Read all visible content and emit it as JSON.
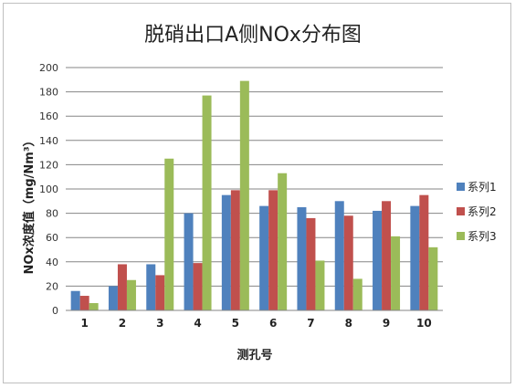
{
  "chart_data": {
    "type": "bar",
    "title": "脱硝出口A侧NOx分布图",
    "xlabel": "测孔号",
    "ylabel": "NOx浓度值（mg/Nm³）",
    "categories": [
      "1",
      "2",
      "3",
      "4",
      "5",
      "6",
      "7",
      "8",
      "9",
      "10"
    ],
    "ylim": [
      0,
      200
    ],
    "yticks": [
      0,
      20,
      40,
      60,
      80,
      100,
      120,
      140,
      160,
      180,
      200
    ],
    "grid": true,
    "legend_position": "right",
    "series": [
      {
        "name": "系列1",
        "color": "#4F81BD",
        "values": [
          16,
          20,
          38,
          80,
          95,
          86,
          85,
          90,
          82,
          86
        ]
      },
      {
        "name": "系列2",
        "color": "#C0504D",
        "values": [
          12,
          38,
          29,
          39,
          99,
          99,
          76,
          78,
          90,
          95
        ]
      },
      {
        "name": "系列3",
        "color": "#9BBB59",
        "values": [
          6,
          25,
          125,
          177,
          189,
          113,
          41,
          26,
          61,
          52
        ]
      }
    ]
  }
}
